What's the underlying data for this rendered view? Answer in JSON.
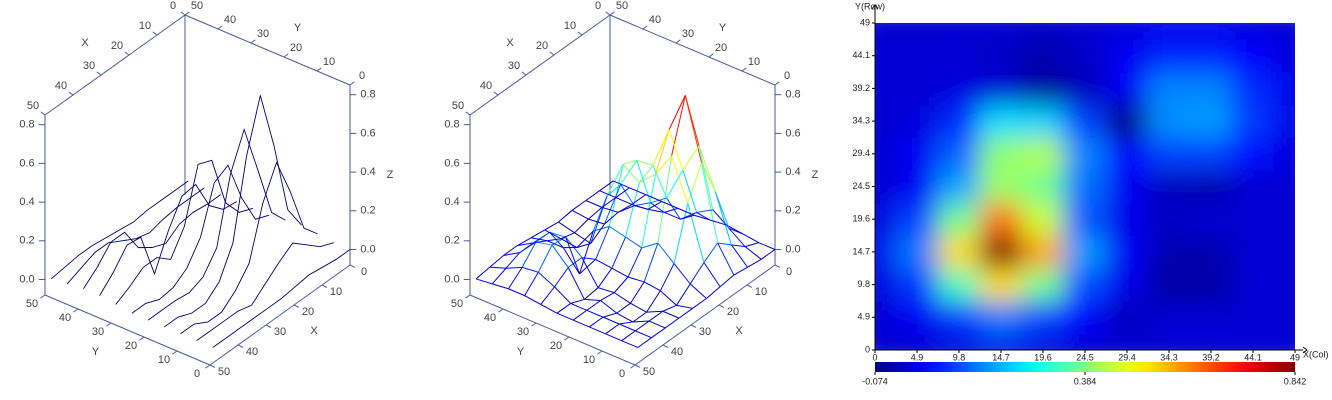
{
  "chart_data": [
    {
      "type": "surface3d",
      "style": "lines",
      "color": "#000066",
      "xlabel": "X",
      "ylabel": "Y",
      "zlabel": "Z",
      "xlim": [
        0,
        50
      ],
      "ylim": [
        0,
        50
      ],
      "zlim": [
        -0.08,
        0.85
      ],
      "xticks": [
        0,
        10,
        20,
        30,
        40,
        50
      ],
      "yticks": [
        0,
        10,
        20,
        30,
        40,
        50
      ],
      "zticks": [
        {
          "value": 0,
          "label": "0.0"
        },
        0.2,
        0.4,
        0.6,
        0.8
      ],
      "x": [
        0,
        4.9,
        9.8,
        14.7,
        19.6,
        24.5,
        29.4,
        34.3,
        39.2,
        44.1,
        49
      ],
      "y": [
        0,
        4.9,
        9.8,
        14.7,
        19.6,
        24.5,
        29.4,
        34.3,
        39.2,
        44.1,
        49
      ],
      "z": [
        [
          0,
          0,
          0.01,
          0.02,
          0.01,
          0,
          0,
          0,
          0,
          0,
          0
        ],
        [
          0,
          0.03,
          0.09,
          0.15,
          0.1,
          0.04,
          -0.02,
          0,
          0,
          0,
          0
        ],
        [
          0.01,
          0.09,
          0.33,
          0.53,
          0.37,
          0.11,
          0.02,
          -0.04,
          -0.04,
          0,
          0
        ],
        [
          0.02,
          0.15,
          0.53,
          0.842,
          0.58,
          0.18,
          0.03,
          -0.03,
          -0.03,
          0,
          0
        ],
        [
          0.01,
          0.1,
          0.37,
          0.63,
          0.45,
          0.12,
          0.02,
          -0.01,
          0,
          0,
          0
        ],
        [
          0,
          0.03,
          0.19,
          0.41,
          0.37,
          0.14,
          0.03,
          -0.02,
          -0.03,
          0,
          0
        ],
        [
          0,
          0.03,
          0.13,
          0.4,
          0.43,
          0.16,
          0.04,
          0.1,
          0.1,
          0.05,
          0.01
        ],
        [
          0,
          0.01,
          0.08,
          0.24,
          0.23,
          0.1,
          -0.07,
          0.17,
          0.18,
          0.09,
          0.02
        ],
        [
          0,
          0,
          0.01,
          0,
          -0.05,
          -0.02,
          0.03,
          0.16,
          0.16,
          0.08,
          0.02
        ],
        [
          0,
          0,
          0,
          -0.01,
          -0.03,
          -0.01,
          0.03,
          0.07,
          0.07,
          0.04,
          0.01
        ],
        [
          0,
          0,
          0,
          0,
          -0.01,
          0,
          0.01,
          0.02,
          0.02,
          0.01,
          0
        ]
      ]
    },
    {
      "type": "surface3d",
      "style": "mesh",
      "colormap": "jet",
      "xlabel": "X",
      "ylabel": "Y",
      "zlabel": "Z",
      "xlim": [
        0,
        50
      ],
      "ylim": [
        0,
        50
      ],
      "zlim": [
        -0.08,
        0.85
      ],
      "xticks": [
        0,
        10,
        20,
        30,
        40,
        50
      ],
      "yticks": [
        0,
        10,
        20,
        30,
        40,
        50
      ],
      "zticks": [
        {
          "value": 0,
          "label": "0.0"
        },
        0.2,
        0.4,
        0.6,
        0.8
      ],
      "x": [
        0,
        4.9,
        9.8,
        14.7,
        19.6,
        24.5,
        29.4,
        34.3,
        39.2,
        44.1,
        49
      ],
      "y": [
        0,
        4.9,
        9.8,
        14.7,
        19.6,
        24.5,
        29.4,
        34.3,
        39.2,
        44.1,
        49
      ],
      "z": [
        [
          0,
          0,
          0.01,
          0.02,
          0.01,
          0,
          0,
          0,
          0,
          0,
          0
        ],
        [
          0,
          0.03,
          0.09,
          0.15,
          0.1,
          0.04,
          -0.02,
          0,
          0,
          0,
          0
        ],
        [
          0.01,
          0.09,
          0.33,
          0.53,
          0.37,
          0.11,
          0.02,
          -0.04,
          -0.04,
          0,
          0
        ],
        [
          0.02,
          0.15,
          0.53,
          0.842,
          0.58,
          0.18,
          0.03,
          -0.03,
          -0.03,
          0,
          0
        ],
        [
          0.01,
          0.1,
          0.37,
          0.63,
          0.45,
          0.12,
          0.02,
          -0.01,
          0,
          0,
          0
        ],
        [
          0,
          0.03,
          0.19,
          0.41,
          0.37,
          0.14,
          0.03,
          -0.02,
          -0.03,
          0,
          0
        ],
        [
          0,
          0.03,
          0.13,
          0.4,
          0.43,
          0.16,
          0.04,
          0.1,
          0.1,
          0.05,
          0.01
        ],
        [
          0,
          0.01,
          0.08,
          0.24,
          0.23,
          0.1,
          -0.07,
          0.17,
          0.18,
          0.09,
          0.02
        ],
        [
          0,
          0,
          0.01,
          0,
          -0.05,
          -0.02,
          0.03,
          0.16,
          0.16,
          0.08,
          0.02
        ],
        [
          0,
          0,
          0,
          -0.01,
          -0.03,
          -0.01,
          0.03,
          0.07,
          0.07,
          0.04,
          0.01
        ],
        [
          0,
          0,
          0,
          0,
          -0.01,
          0,
          0.01,
          0.02,
          0.02,
          0.01,
          0
        ]
      ]
    },
    {
      "type": "heatmap",
      "colormap": "jet",
      "xlabel": "X(Col)",
      "ylabel": "Y(Row)",
      "xlim": [
        0,
        49
      ],
      "ylim": [
        0,
        49
      ],
      "xticks": [
        0,
        4.9,
        9.8,
        14.7,
        19.6,
        24.5,
        29.4,
        34.3,
        39.2,
        44.1,
        49
      ],
      "yticks": [
        0,
        4.9,
        9.8,
        14.7,
        19.6,
        24.5,
        29.4,
        34.3,
        39.2,
        44.1,
        49
      ],
      "clim": [
        -0.074,
        0.842
      ],
      "cticks": [
        -0.074,
        0.384,
        0.842
      ],
      "x": [
        0,
        4.9,
        9.8,
        14.7,
        19.6,
        24.5,
        29.4,
        34.3,
        39.2,
        44.1,
        49
      ],
      "y": [
        0,
        4.9,
        9.8,
        14.7,
        19.6,
        24.5,
        29.4,
        34.3,
        39.2,
        44.1,
        49
      ],
      "z": [
        [
          0,
          0,
          0.01,
          0.02,
          0.01,
          0,
          0,
          0,
          0,
          0,
          0
        ],
        [
          0,
          0.03,
          0.09,
          0.15,
          0.1,
          0.04,
          -0.02,
          0,
          0,
          0,
          0
        ],
        [
          0.01,
          0.09,
          0.33,
          0.53,
          0.37,
          0.11,
          0.02,
          -0.04,
          -0.04,
          0,
          0
        ],
        [
          0.02,
          0.15,
          0.53,
          0.842,
          0.58,
          0.18,
          0.03,
          -0.03,
          -0.03,
          0,
          0
        ],
        [
          0.01,
          0.1,
          0.37,
          0.63,
          0.45,
          0.12,
          0.02,
          -0.01,
          0,
          0,
          0
        ],
        [
          0,
          0.03,
          0.19,
          0.41,
          0.37,
          0.14,
          0.03,
          -0.02,
          -0.03,
          0,
          0
        ],
        [
          0,
          0.03,
          0.13,
          0.4,
          0.43,
          0.16,
          0.04,
          0.1,
          0.1,
          0.05,
          0.01
        ],
        [
          0,
          0.01,
          0.08,
          0.24,
          0.23,
          0.1,
          -0.07,
          0.17,
          0.18,
          0.09,
          0.02
        ],
        [
          0,
          0,
          0.01,
          0,
          -0.05,
          -0.02,
          0.03,
          0.16,
          0.16,
          0.08,
          0.02
        ],
        [
          0,
          0,
          0,
          -0.01,
          -0.03,
          -0.01,
          0.03,
          0.07,
          0.07,
          0.04,
          0.01
        ],
        [
          0,
          0,
          0,
          0,
          -0.01,
          0,
          0.01,
          0.02,
          0.02,
          0.01,
          0
        ]
      ]
    }
  ]
}
